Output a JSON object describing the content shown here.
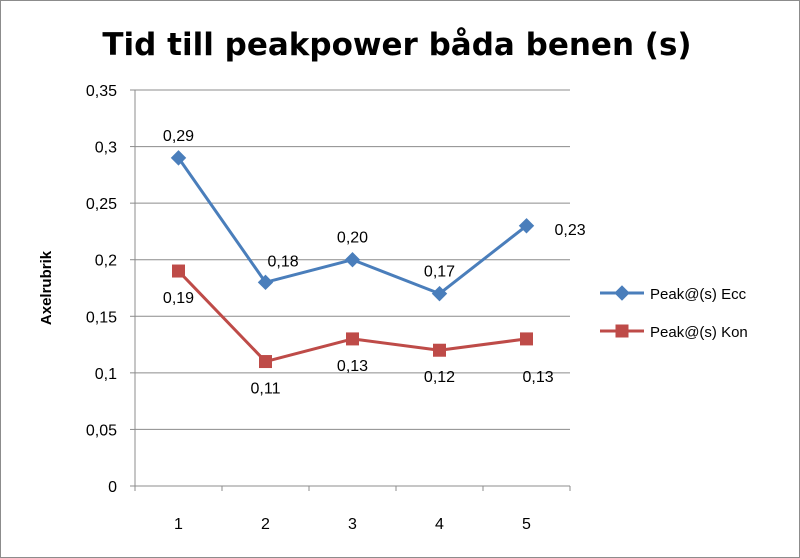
{
  "chart_data": {
    "type": "line",
    "title": "Tid till peakpower båda benen (s)",
    "xlabel": "",
    "ylabel": "Axelrubrik",
    "categories": [
      "1",
      "2",
      "3",
      "4",
      "5"
    ],
    "ylim": [
      0,
      0.35
    ],
    "yticks": [
      0,
      0.05,
      0.1,
      0.15,
      0.2,
      0.25,
      0.3,
      0.35
    ],
    "ytick_labels": [
      "0",
      "0,05",
      "0,1",
      "0,15",
      "0,2",
      "0,25",
      "0,3",
      "0,35"
    ],
    "grid": true,
    "legend_position": "right",
    "series": [
      {
        "name": "Peak@(s) Ecc",
        "values": [
          0.29,
          0.18,
          0.2,
          0.17,
          0.23
        ],
        "labels": [
          "0,29",
          "0,18",
          "0,20",
          "0,17",
          "0,23"
        ],
        "label_positions": [
          "above",
          "above-right",
          "above",
          "above",
          "right"
        ],
        "color": "#4a7ebb",
        "marker": "diamond"
      },
      {
        "name": "Peak@(s) Kon",
        "values": [
          0.19,
          0.11,
          0.13,
          0.12,
          0.13
        ],
        "labels": [
          "0,19",
          "0,11",
          "0,13",
          "0,12",
          "0,13"
        ],
        "label_positions": [
          "below",
          "below",
          "below",
          "below",
          "below-right"
        ],
        "color": "#be4b48",
        "marker": "square"
      }
    ]
  }
}
